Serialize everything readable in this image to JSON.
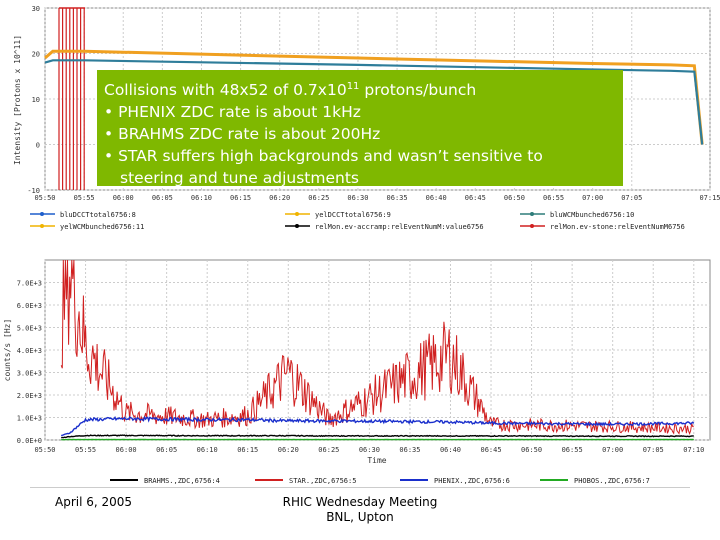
{
  "top_chart": {
    "ylabel": "Intensity [Protons x 10^11]",
    "y_ticks": [
      "30",
      "20",
      "10",
      "0",
      "-10"
    ],
    "x_ticks": [
      "05:50",
      "05:55",
      "06:00",
      "06:05",
      "06:10",
      "06:15",
      "06:20",
      "06:25",
      "06:30",
      "06:35",
      "06:40",
      "06:45",
      "06:50",
      "06:55",
      "07:00",
      "07:05",
      "07:15"
    ],
    "legend": [
      {
        "label": "bluDCCTtotal6756:8",
        "color": "#1f5fcc"
      },
      {
        "label": "yelDCCTtotal6756:9",
        "color": "#f0b400"
      },
      {
        "label": "bluWCMbunched6756:10",
        "color": "#2e7d7a"
      },
      {
        "label": "yelWCMbunched6756:11",
        "color": "#f0b400"
      },
      {
        "label": "relMon.ev-accramp:relEventNumM:value6756",
        "color": "#000000"
      },
      {
        "label": "relMon.ev-stone:relEventNumM6756",
        "color": "#d02020"
      }
    ]
  },
  "chart_data": [
    {
      "type": "line",
      "title": "",
      "xlabel": "",
      "ylabel": "Intensity [Protons x 10^11]",
      "ylim": [
        -10,
        30
      ],
      "x": [
        "05:50",
        "05:51",
        "05:55",
        "06:30",
        "07:00",
        "07:10",
        "07:13",
        "07:14"
      ],
      "series": [
        {
          "name": "yelDCCTtotal6756:9",
          "values": [
            19,
            20.5,
            20.5,
            19,
            17.8,
            17.5,
            17.3,
            0
          ]
        },
        {
          "name": "bluWCMbunched6756:10",
          "values": [
            18,
            18.5,
            18.5,
            17.5,
            16.5,
            16.2,
            16,
            0
          ]
        }
      ]
    },
    {
      "type": "line",
      "title": "",
      "xlabel": "Time",
      "ylabel": "counts/s [Hz]",
      "ylim": [
        0,
        8000
      ],
      "x": [
        "05:50",
        "05:53",
        "05:55",
        "06:00",
        "06:10",
        "06:15",
        "06:20",
        "06:25",
        "06:40",
        "06:45",
        "07:00",
        "07:10"
      ],
      "series": [
        {
          "name": "STAR.,ZDC,6756:5",
          "values": [
            0,
            7900,
            4200,
            1200,
            900,
            1100,
            3000,
            900,
            3800,
            700,
            600,
            500
          ]
        },
        {
          "name": "PHENIX.,ZDC,6756:6",
          "values": [
            0,
            300,
            900,
            950,
            900,
            900,
            850,
            850,
            800,
            750,
            700,
            750
          ]
        },
        {
          "name": "BRAHMS.,ZDC,6756:4",
          "values": [
            0,
            150,
            200,
            200,
            190,
            190,
            190,
            180,
            180,
            180,
            170,
            170
          ]
        },
        {
          "name": "PHOBOS.,ZDC,6756:7",
          "values": [
            0,
            20,
            20,
            20,
            20,
            20,
            20,
            20,
            20,
            20,
            20,
            20
          ]
        }
      ]
    }
  ],
  "bottom_chart": {
    "ylabel": "counts/s [Hz]",
    "xlabel": "Time",
    "y_ticks": [
      "7.0E+3",
      "6.0E+3",
      "5.0E+3",
      "4.0E+3",
      "3.0E+3",
      "2.0E+3",
      "1.0E+3",
      "0.0E+0"
    ],
    "x_ticks": [
      "05:50",
      "05:55",
      "06:00",
      "06:05",
      "06:10",
      "06:15",
      "06:20",
      "06:25",
      "06:30",
      "06:35",
      "06:40",
      "06:45",
      "06:50",
      "06:55",
      "07:00",
      "07:05",
      "07:10"
    ],
    "legend": [
      {
        "label": "BRAHMS.,ZDC,6756:4",
        "color": "#000000"
      },
      {
        "label": "STAR.,ZDC,6756:5",
        "color": "#d02020"
      },
      {
        "label": "PHENIX.,ZDC,6756:6",
        "color": "#1a2fcc"
      },
      {
        "label": "PHOBOS.,ZDC,6756:7",
        "color": "#22aa22"
      }
    ]
  },
  "overlay": {
    "line1_prefix": "Collisions with 48x52 of 0.7x10",
    "line1_sup": "11",
    "line1_suffix": " protons/bunch",
    "bullets": [
      "• PHENIX ZDC rate is about 1kHz",
      "• BRAHMS ZDC rate is about 200Hz",
      "• STAR suffers high backgrounds and wasn’t sensitive to"
    ],
    "continuation": "steering and tune adjustments"
  },
  "footer": {
    "date": "April 6, 2005",
    "meeting": "RHIC Wednesday Meeting",
    "location": "BNL, Upton"
  }
}
